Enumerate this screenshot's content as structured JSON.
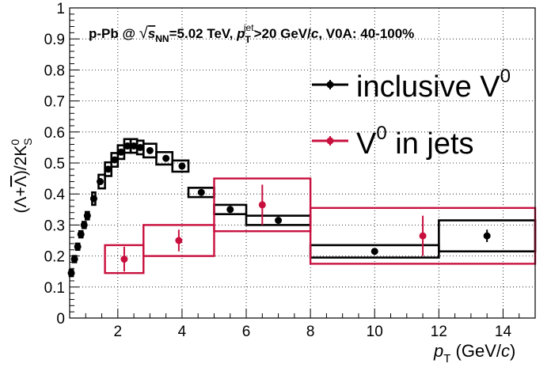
{
  "colors": {
    "inclusive": "#000000",
    "jets": "#c8103e",
    "grid": "#000000",
    "axis": "#000000"
  },
  "chart_data": {
    "type": "scatter",
    "title": {
      "p1": "p-Pb @ ",
      "sqrt": "√",
      "s": "s",
      "nn": "NN",
      "p2": "=5.02 TeV, ",
      "p": "p",
      "T": "T",
      "jet": "jet",
      "p3": ">20 GeV/",
      "c": "c",
      "p4": ", V0A: 40-100%"
    },
    "ylabel": {
      "open": "(",
      "lam": "Λ",
      "plus": "+",
      "lambar": "Λ",
      "close": ")/2K",
      "sup": "0",
      "sub": "S"
    },
    "xlabel": {
      "p": "p",
      "T": "T",
      "unit": " (GeV/",
      "c": "c",
      "close": ")"
    },
    "xlim": [
      0.5,
      15
    ],
    "ylim": [
      0,
      1
    ],
    "grid": true,
    "legend_position": "top-right",
    "xticks": [
      2,
      4,
      6,
      8,
      10,
      12,
      14
    ],
    "yticks": [
      0,
      0.1,
      0.2,
      0.3,
      0.4,
      0.5,
      0.6,
      0.7,
      0.8,
      0.9,
      1
    ],
    "ytick_labels": [
      "0",
      "0.1",
      "0.2",
      "0.3",
      "0.4",
      "0.5",
      "0.6",
      "0.7",
      "0.8",
      "0.9",
      "1"
    ],
    "series": [
      {
        "name": "inclusive V",
        "name_sup": "0",
        "color": "#000000",
        "points": [
          {
            "x": 0.55,
            "y": 0.145,
            "xlo": 0.5,
            "xhi": 0.6,
            "sys": 0.01,
            "err": 0.005
          },
          {
            "x": 0.65,
            "y": 0.19,
            "xlo": 0.6,
            "xhi": 0.7,
            "sys": 0.01,
            "err": 0.005
          },
          {
            "x": 0.75,
            "y": 0.23,
            "xlo": 0.7,
            "xhi": 0.8,
            "sys": 0.01,
            "err": 0.005
          },
          {
            "x": 0.85,
            "y": 0.27,
            "xlo": 0.8,
            "xhi": 0.9,
            "sys": 0.01,
            "err": 0.005
          },
          {
            "x": 0.95,
            "y": 0.3,
            "xlo": 0.9,
            "xhi": 1.0,
            "sys": 0.01,
            "err": 0.005
          },
          {
            "x": 1.05,
            "y": 0.33,
            "xlo": 1.0,
            "xhi": 1.1,
            "sys": 0.012,
            "err": 0.005
          },
          {
            "x": 1.25,
            "y": 0.385,
            "xlo": 1.2,
            "xhi": 1.3,
            "sys": 0.02,
            "err": 0.005
          },
          {
            "x": 1.45,
            "y": 0.44,
            "xlo": 1.4,
            "xhi": 1.6,
            "sys": 0.022,
            "err": 0.005
          },
          {
            "x": 1.7,
            "y": 0.48,
            "xlo": 1.6,
            "xhi": 1.8,
            "sys": 0.022,
            "err": 0.005
          },
          {
            "x": 1.9,
            "y": 0.51,
            "xlo": 1.8,
            "xhi": 2.0,
            "sys": 0.022,
            "err": 0.005
          },
          {
            "x": 2.1,
            "y": 0.535,
            "xlo": 2.0,
            "xhi": 2.2,
            "sys": 0.022,
            "err": 0.005
          },
          {
            "x": 2.3,
            "y": 0.555,
            "xlo": 2.2,
            "xhi": 2.4,
            "sys": 0.022,
            "err": 0.005
          },
          {
            "x": 2.5,
            "y": 0.555,
            "xlo": 2.4,
            "xhi": 2.6,
            "sys": 0.022,
            "err": 0.005
          },
          {
            "x": 2.7,
            "y": 0.55,
            "xlo": 2.6,
            "xhi": 2.8,
            "sys": 0.022,
            "err": 0.005
          },
          {
            "x": 3.0,
            "y": 0.54,
            "xlo": 2.8,
            "xhi": 3.2,
            "sys": 0.022,
            "err": 0.005
          },
          {
            "x": 3.5,
            "y": 0.515,
            "xlo": 3.2,
            "xhi": 3.7,
            "sys": 0.02,
            "err": 0.005
          },
          {
            "x": 4.0,
            "y": 0.49,
            "xlo": 3.7,
            "xhi": 4.2,
            "sys": 0.018,
            "err": 0.008
          },
          {
            "x": 4.6,
            "y": 0.405,
            "xlo": 4.2,
            "xhi": 5.0,
            "sys": 0.015,
            "err": 0.008
          },
          {
            "x": 5.5,
            "y": 0.35,
            "xlo": 5.0,
            "xhi": 6.0,
            "sys": 0.015,
            "err": 0.008
          },
          {
            "x": 7.0,
            "y": 0.315,
            "xlo": 6.0,
            "xhi": 8.0,
            "sys": 0.015,
            "err": 0.01
          },
          {
            "x": 10.0,
            "y": 0.215,
            "xlo": 8.0,
            "xhi": 12.0,
            "sys": 0.02,
            "err": 0.01
          },
          {
            "x": 13.5,
            "y": 0.265,
            "xlo": 12.0,
            "xhi": 15.0,
            "sys": 0.05,
            "err": 0.02
          }
        ]
      },
      {
        "name": "V",
        "name_sup": "0",
        "name_rest": " in jets",
        "color": "#c8103e",
        "points": [
          {
            "x": 2.2,
            "y": 0.19,
            "xlo": 1.6,
            "xhi": 2.8,
            "sys": 0.045,
            "err": 0.04
          },
          {
            "x": 3.9,
            "y": 0.25,
            "xlo": 2.8,
            "xhi": 5.0,
            "sys": 0.05,
            "err": 0.035
          },
          {
            "x": 6.5,
            "y": 0.365,
            "xlo": 5.0,
            "xhi": 8.0,
            "sys": 0.085,
            "err": 0.065
          },
          {
            "x": 11.5,
            "y": 0.265,
            "xlo": 8.0,
            "xhi": 15.0,
            "sys": 0.09,
            "err": 0.065
          }
        ]
      }
    ]
  }
}
